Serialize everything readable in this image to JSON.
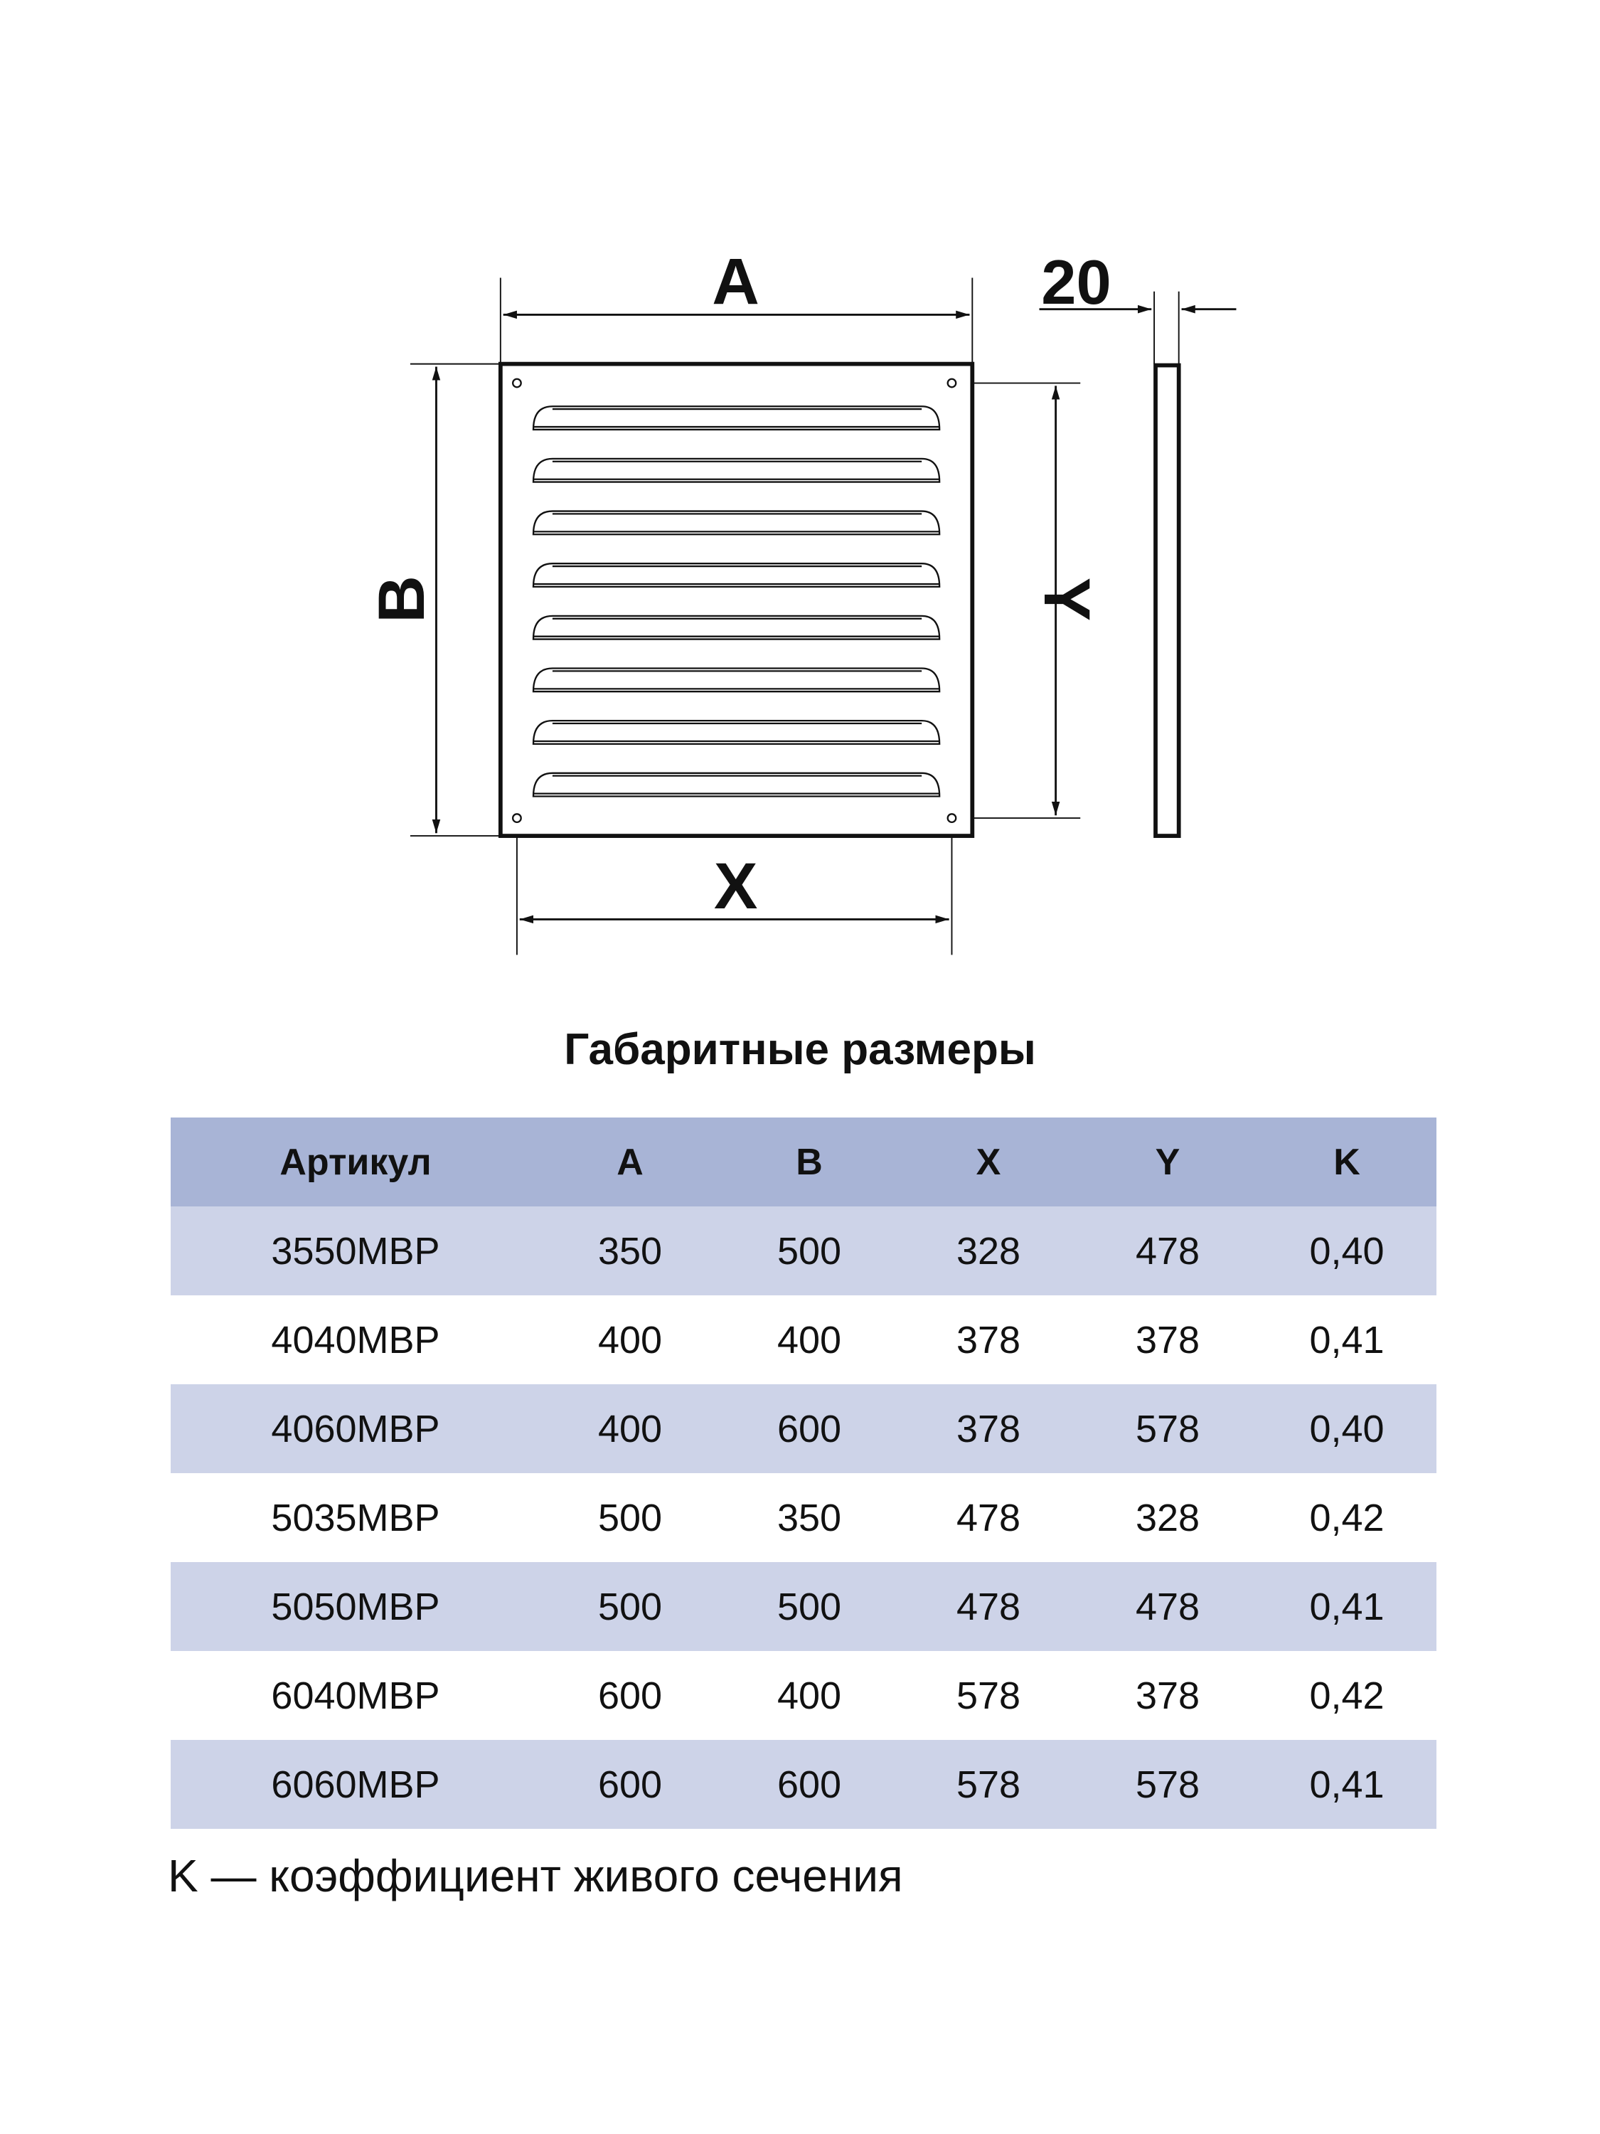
{
  "drawing": {
    "labels": {
      "a": "A",
      "b": "B",
      "x": "X",
      "y": "Y",
      "depth": "20"
    },
    "louver_count": 8
  },
  "title": "Габаритные размеры",
  "table": {
    "headers": [
      "Артикул",
      "A",
      "B",
      "X",
      "Y",
      "K"
    ],
    "rows": [
      [
        "3550МВР",
        "350",
        "500",
        "328",
        "478",
        "0,40"
      ],
      [
        "4040МВР",
        "400",
        "400",
        "378",
        "378",
        "0,41"
      ],
      [
        "4060МВР",
        "400",
        "600",
        "378",
        "578",
        "0,40"
      ],
      [
        "5035МВР",
        "500",
        "350",
        "478",
        "328",
        "0,42"
      ],
      [
        "5050МВР",
        "500",
        "500",
        "478",
        "478",
        "0,41"
      ],
      [
        "6040МВР",
        "600",
        "400",
        "578",
        "378",
        "0,42"
      ],
      [
        "6060МВР",
        "600",
        "600",
        "578",
        "578",
        "0,41"
      ]
    ],
    "colors": {
      "header": "#a8b4d6",
      "stripe": "#cdd3e8"
    }
  },
  "footnote": "K — коэффициент живого сечения"
}
